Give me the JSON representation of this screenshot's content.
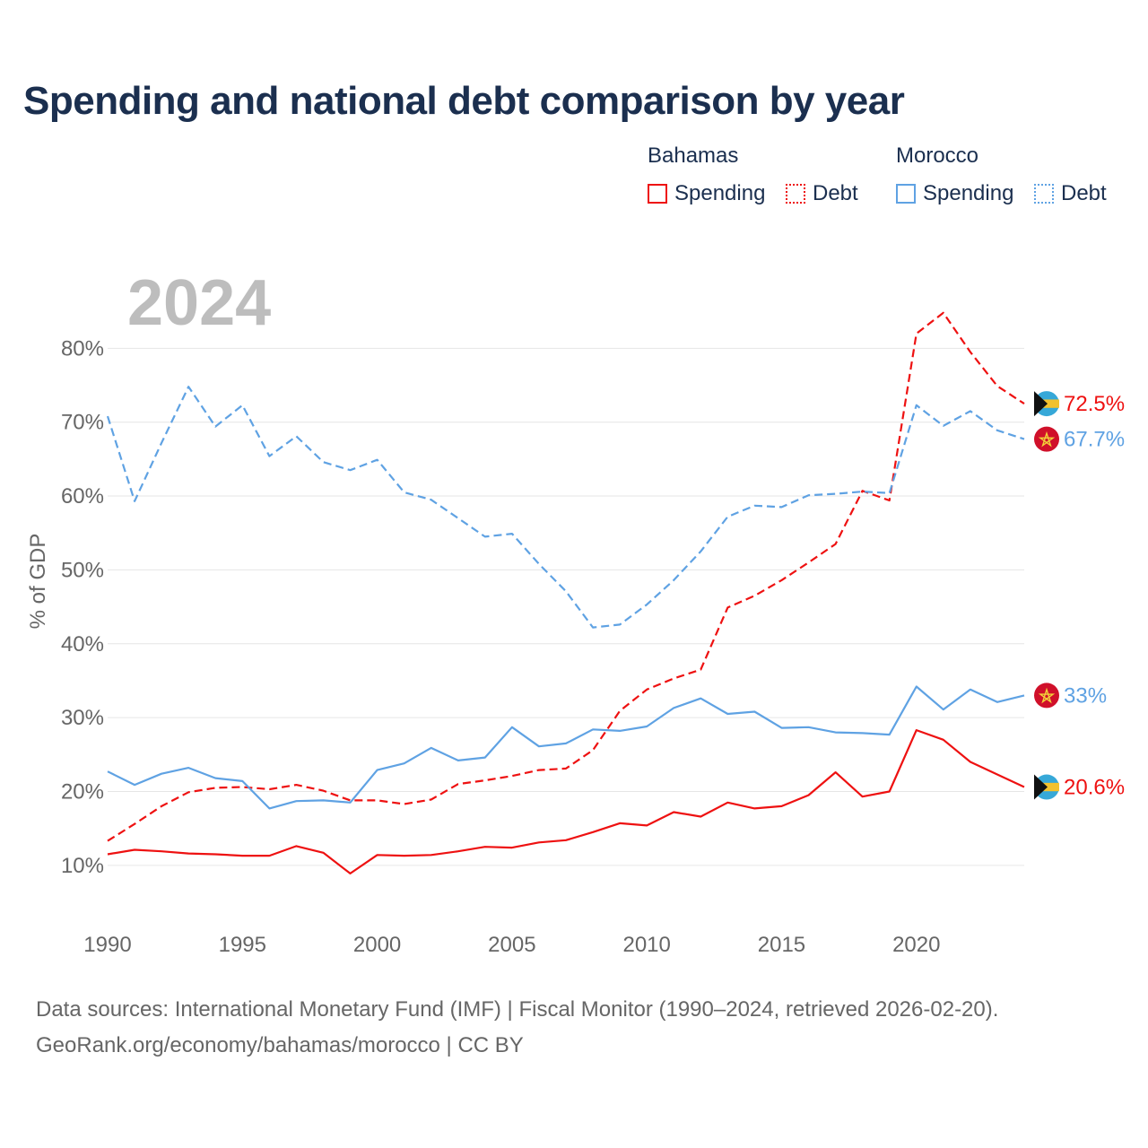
{
  "title": "Spending and national debt comparison by year",
  "legend": {
    "country_a": "Bahamas",
    "country_b": "Morocco",
    "spending_label": "Spending",
    "debt_label": "Debt"
  },
  "colors": {
    "bahamas": "#ee1111",
    "morocco": "#5fa2e3"
  },
  "footer": {
    "line1": "Data sources: International Monetary Fund (IMF) | Fiscal Monitor (1990–2024, retrieved 2026-02-20).",
    "line2": "GeoRank.org/economy/bahamas/morocco | CC BY"
  },
  "chart_data": {
    "type": "line",
    "watermark": "2024",
    "ylabel": "% of GDP",
    "xlim": [
      1990,
      2024
    ],
    "ylim": [
      5,
      90
    ],
    "yticks": [
      10,
      20,
      30,
      40,
      50,
      60,
      70,
      80
    ],
    "ytick_labels": [
      "10%",
      "20%",
      "30%",
      "40%",
      "50%",
      "60%",
      "70%",
      "80%"
    ],
    "xticks": [
      1990,
      1995,
      2000,
      2005,
      2010,
      2015,
      2020
    ],
    "xtick_labels": [
      "1990",
      "1995",
      "2000",
      "2005",
      "2010",
      "2015",
      "2020"
    ],
    "x": [
      1990,
      1991,
      1992,
      1993,
      1994,
      1995,
      1996,
      1997,
      1998,
      1999,
      2000,
      2001,
      2002,
      2003,
      2004,
      2005,
      2006,
      2007,
      2008,
      2009,
      2010,
      2011,
      2012,
      2013,
      2014,
      2015,
      2016,
      2017,
      2018,
      2019,
      2020,
      2021,
      2022,
      2023,
      2024
    ],
    "series": [
      {
        "name": "Bahamas Spending",
        "country": "bahamas",
        "style": "solid",
        "end_label": "20.6%",
        "values": [
          11.5,
          12.1,
          11.9,
          11.6,
          11.5,
          11.3,
          11.3,
          12.6,
          11.7,
          8.9,
          11.4,
          11.3,
          11.4,
          11.9,
          12.5,
          12.4,
          13.1,
          13.4,
          14.5,
          15.7,
          15.4,
          17.2,
          16.6,
          18.5,
          17.7,
          18.0,
          19.5,
          22.6,
          19.3,
          20.0,
          28.3,
          27.0,
          24.0,
          22.3,
          20.6
        ]
      },
      {
        "name": "Bahamas Debt",
        "country": "bahamas",
        "style": "dashed",
        "end_label": "72.5%",
        "values": [
          13.3,
          15.6,
          18.0,
          19.9,
          20.5,
          20.6,
          20.3,
          20.9,
          20.1,
          18.8,
          18.8,
          18.3,
          18.9,
          21.0,
          21.5,
          22.1,
          22.9,
          23.1,
          25.6,
          30.9,
          33.8,
          35.3,
          36.5,
          44.9,
          46.5,
          48.6,
          51.0,
          53.5,
          60.7,
          59.4,
          82.0,
          84.8,
          79.5,
          74.9,
          72.5
        ]
      },
      {
        "name": "Morocco Spending",
        "country": "morocco",
        "style": "solid",
        "end_label": "33%",
        "values": [
          22.7,
          20.9,
          22.4,
          23.2,
          21.8,
          21.4,
          17.7,
          18.7,
          18.8,
          18.5,
          22.9,
          23.8,
          25.9,
          24.2,
          24.6,
          28.7,
          26.1,
          26.5,
          28.4,
          28.2,
          28.8,
          31.3,
          32.6,
          30.5,
          30.8,
          28.6,
          28.7,
          28.0,
          27.9,
          27.7,
          34.2,
          31.1,
          33.8,
          32.1,
          33.0
        ]
      },
      {
        "name": "Morocco Debt",
        "country": "morocco",
        "style": "dashed",
        "end_label": "67.7%",
        "values": [
          70.8,
          59.3,
          67.2,
          74.8,
          69.4,
          72.3,
          65.4,
          68.1,
          64.6,
          63.5,
          64.9,
          60.5,
          59.5,
          57.0,
          54.5,
          54.9,
          50.8,
          47.1,
          42.2,
          42.6,
          45.3,
          48.6,
          52.5,
          57.2,
          58.7,
          58.5,
          60.1,
          60.3,
          60.6,
          60.4,
          72.3,
          69.5,
          71.5,
          68.9,
          67.7
        ]
      }
    ],
    "flags": {
      "bahamas": [
        "bahamas-flag-aqua",
        "bahamas-flag-gold",
        "bahamas-flag-black-triangle"
      ],
      "morocco": [
        "morocco-flag-red",
        "morocco-flag-green-star"
      ]
    }
  }
}
